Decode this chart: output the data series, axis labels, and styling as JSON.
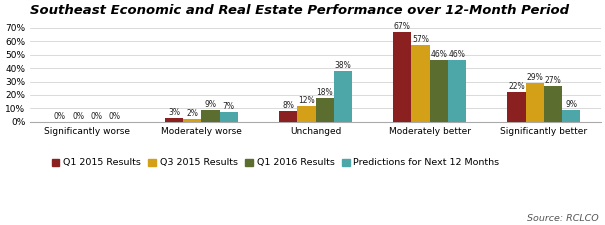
{
  "title": "Southeast Economic and Real Estate Performance over 12-Month Period",
  "categories": [
    "Significantly worse",
    "Moderately worse",
    "Unchanged",
    "Moderately better",
    "Significantly better"
  ],
  "series": [
    {
      "label": "Q1 2015 Results",
      "color": "#8B2020",
      "values": [
        0,
        3,
        8,
        67,
        22
      ]
    },
    {
      "label": "Q3 2015 Results",
      "color": "#D4A017",
      "values": [
        0,
        2,
        12,
        57,
        29
      ]
    },
    {
      "label": "Q1 2016 Results",
      "color": "#5B6E2F",
      "values": [
        0,
        9,
        18,
        46,
        27
      ]
    },
    {
      "label": "Predictions for Next 12 Months",
      "color": "#4DA6A8",
      "values": [
        0,
        7,
        38,
        46,
        9
      ]
    }
  ],
  "ylim": [
    0,
    75
  ],
  "yticks": [
    0,
    10,
    20,
    30,
    40,
    50,
    60,
    70
  ],
  "ytick_labels": [
    "0%",
    "10%",
    "20%",
    "30%",
    "40%",
    "50%",
    "60%",
    "70%"
  ],
  "source_text": "Source: RCLCO",
  "bar_width": 0.16,
  "label_fontsize": 5.5,
  "title_fontsize": 9.5,
  "legend_fontsize": 6.8,
  "tick_fontsize": 6.5,
  "source_fontsize": 6.8
}
